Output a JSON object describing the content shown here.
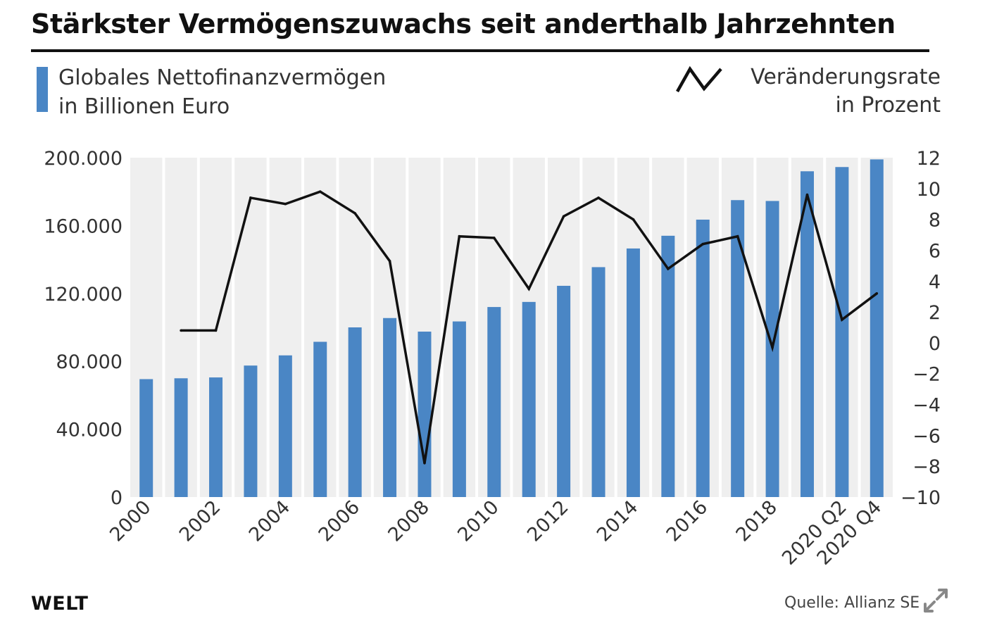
{
  "title": "Stärkster Vermögenszuwachs seit anderthalb Jahrzehnten",
  "legend": {
    "bars_line1": "Globales Nettofinanzvermögen",
    "bars_line2": "in Billionen Euro",
    "line_line1": "Veränderungsrate",
    "line_line2": "in Prozent"
  },
  "logo": "WELT",
  "source": "Quelle: Allianz SE",
  "icons": {
    "expand": "expand-icon"
  },
  "colors": {
    "bar": "#4a86c5",
    "line": "#111111",
    "band": "#efefef"
  },
  "chart_data": {
    "type": "bar",
    "categories": [
      "2000",
      "2001",
      "2002",
      "2003",
      "2004",
      "2005",
      "2006",
      "2007",
      "2008",
      "2009",
      "2010",
      "2011",
      "2012",
      "2013",
      "2014",
      "2015",
      "2016",
      "2017",
      "2018",
      "2019",
      "2020 Q2",
      "2020 Q4"
    ],
    "x_tick_labels": [
      "2000",
      "2002",
      "2004",
      "2006",
      "2008",
      "2010",
      "2012",
      "2014",
      "2016",
      "2018",
      "2020 Q2",
      "2020 Q4"
    ],
    "x_tick_categories": [
      "2000",
      "2002",
      "2004",
      "2006",
      "2008",
      "2010",
      "2012",
      "2014",
      "2016",
      "2018",
      "2020 Q2",
      "2020 Q4"
    ],
    "series": [
      {
        "name": "Globales Nettofinanzvermögen in Billionen Euro",
        "type": "bar",
        "axis": "left",
        "values": [
          69500,
          70000,
          70500,
          77500,
          83500,
          91500,
          100000,
          105500,
          97500,
          103500,
          112000,
          115000,
          124500,
          135500,
          146500,
          154000,
          163500,
          175000,
          174500,
          192000,
          194500,
          199000
        ]
      },
      {
        "name": "Veränderungsrate in Prozent",
        "type": "line",
        "axis": "right",
        "values": [
          null,
          0.8,
          0.8,
          9.4,
          9.0,
          9.8,
          8.4,
          5.3,
          -7.8,
          6.9,
          6.8,
          3.5,
          8.2,
          9.4,
          8.0,
          4.8,
          6.4,
          6.9,
          -0.3,
          9.6,
          1.5,
          3.2
        ]
      }
    ],
    "ylim_left": [
      0,
      200000
    ],
    "yticks_left": [
      "0",
      "40.000",
      "80.000",
      "120.000",
      "160.000",
      "200.000"
    ],
    "yticks_left_values": [
      0,
      40000,
      80000,
      120000,
      160000,
      200000
    ],
    "ylim_right": [
      -10,
      12
    ],
    "yticks_right": [
      "−10",
      "−8",
      "−6",
      "−4",
      "−2",
      "0",
      "2",
      "4",
      "6",
      "8",
      "10",
      "12"
    ],
    "yticks_right_values": [
      -10,
      -8,
      -6,
      -4,
      -2,
      0,
      2,
      4,
      6,
      8,
      10,
      12
    ],
    "grid": false,
    "legend_position": "top"
  }
}
